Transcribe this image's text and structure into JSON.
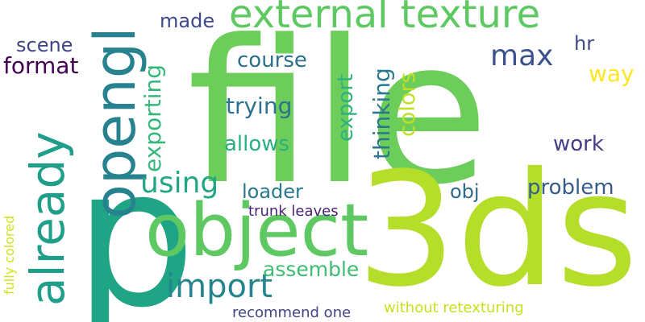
{
  "background": "#ffffff",
  "words": [
    {
      "key": "file",
      "text": "file",
      "color": "#6ccd5a"
    },
    {
      "key": "3ds",
      "text": "3ds",
      "color": "#b5de2b"
    },
    {
      "key": "p",
      "text": "p",
      "color": "#20a486"
    },
    {
      "key": "object",
      "text": "object",
      "color": "#5ec962"
    },
    {
      "key": "opengl",
      "text": "opengl",
      "color": "#26828e"
    },
    {
      "key": "already",
      "text": "already",
      "color": "#1f9e89"
    },
    {
      "key": "external-texture",
      "text": "external texture",
      "color": "#5ec962"
    },
    {
      "key": "import",
      "text": "import",
      "color": "#25858e"
    },
    {
      "key": "using",
      "text": "using",
      "color": "#22a785"
    },
    {
      "key": "max",
      "text": "max",
      "color": "#3b528b"
    },
    {
      "key": "exporting",
      "text": "exporting",
      "color": "#35b779"
    },
    {
      "key": "thinking",
      "text": "thinking",
      "color": "#2a788e"
    },
    {
      "key": "colors",
      "text": "colors",
      "color": "#c2df23"
    },
    {
      "key": "export",
      "text": "export",
      "color": "#2db27d"
    },
    {
      "key": "trying",
      "text": "trying",
      "color": "#2c718e"
    },
    {
      "key": "allows",
      "text": "allows",
      "color": "#2ab07f"
    },
    {
      "key": "work",
      "text": "work",
      "color": "#433e85"
    },
    {
      "key": "course",
      "text": "course",
      "color": "#2d708e"
    },
    {
      "key": "made",
      "text": "made",
      "color": "#3e4989"
    },
    {
      "key": "scene",
      "text": "scene",
      "color": "#414487"
    },
    {
      "key": "format",
      "text": "format",
      "color": "#440154"
    },
    {
      "key": "hr",
      "text": "hr",
      "color": "#3e4a89"
    },
    {
      "key": "way",
      "text": "way",
      "color": "#fde725"
    },
    {
      "key": "loader",
      "text": "loader",
      "color": "#2a788e"
    },
    {
      "key": "obj",
      "text": "obj",
      "color": "#31688e"
    },
    {
      "key": "problem",
      "text": "problem",
      "color": "#365c8d"
    },
    {
      "key": "assemble",
      "text": "assemble",
      "color": "#3fbc73"
    },
    {
      "key": "trunk-leaves",
      "text": "trunk leaves",
      "color": "#482374"
    },
    {
      "key": "fully-colored",
      "text": "fully colored",
      "color": "#d2e21b"
    },
    {
      "key": "recommend-one",
      "text": "recommend one",
      "color": "#414487"
    },
    {
      "key": "without-retexturing",
      "text": "without retexturing",
      "color": "#c8e020"
    }
  ]
}
